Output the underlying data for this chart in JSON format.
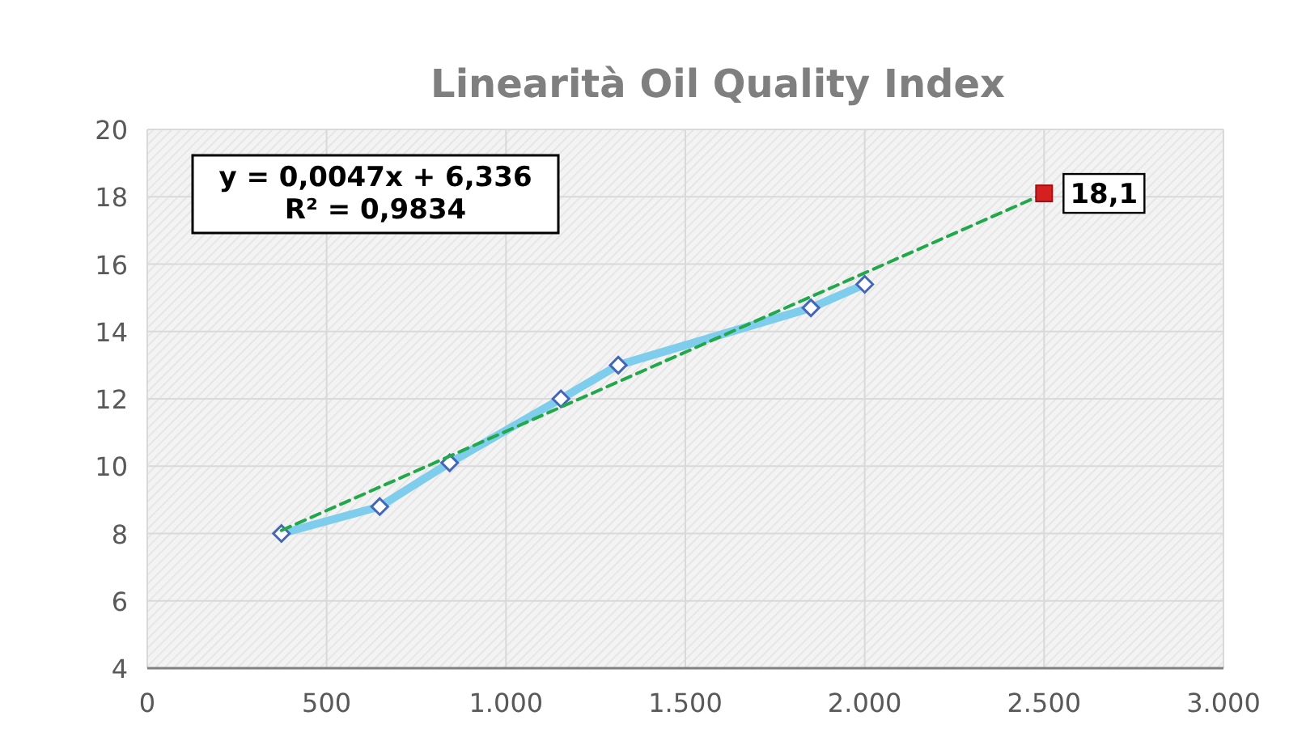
{
  "chart_data": {
    "type": "line",
    "title": "Linearità Oil Quality Index",
    "xlim": [
      0,
      3000
    ],
    "xticks": [
      0,
      500,
      {
        "value": 1000,
        "label": "1.000"
      },
      {
        "value": 1500,
        "label": "1.500"
      },
      {
        "value": 2000,
        "label": "2.000"
      },
      {
        "value": 2500,
        "label": "2.500"
      },
      {
        "value": 3000,
        "label": "3.000"
      }
    ],
    "ylim": [
      4,
      20
    ],
    "yticks": [
      4,
      6,
      8,
      10,
      12,
      14,
      16,
      18,
      20
    ],
    "grid": true,
    "annotations": [
      "y = 0,0047x + 6,336",
      "R² = 0,9834"
    ],
    "series": [
      {
        "color": "#7ecdec",
        "marker": "diamond",
        "x": [
          374,
          648,
          843,
          1153,
          1313,
          1850,
          2000
        ],
        "values": [
          8.0,
          8.8,
          10.1,
          12.0,
          13.0,
          14.7,
          15.4
        ]
      },
      {
        "color": "#22a84a",
        "line_style": "dashed",
        "marker": "none",
        "x": [
          374,
          2500
        ],
        "values": [
          8.09,
          18.09
        ]
      },
      {
        "type": "scatter",
        "color": "#d42020",
        "marker": "square",
        "x": [
          2500
        ],
        "values": [
          18.1
        ],
        "value_labels": [
          "18,1"
        ]
      }
    ]
  }
}
